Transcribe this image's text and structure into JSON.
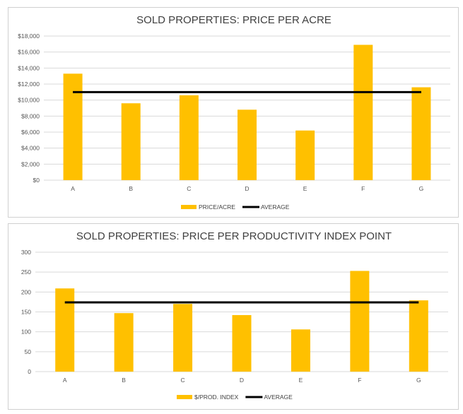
{
  "chart_data": [
    {
      "type": "bar",
      "title": "SOLD PROPERTIES: PRICE PER ACRE",
      "categories": [
        "A",
        "B",
        "C",
        "D",
        "E",
        "F",
        "G"
      ],
      "series": [
        {
          "name": "PRICE/ACRE",
          "type": "bar",
          "color": "#FFC000",
          "values": [
            13300,
            9600,
            10600,
            8800,
            6200,
            16900,
            11600
          ]
        },
        {
          "name": "AVERAGE",
          "type": "line",
          "color": "#000000",
          "values": [
            11000,
            11000,
            11000,
            11000,
            11000,
            11000,
            11000
          ]
        }
      ],
      "ylim": [
        0,
        18000
      ],
      "yticks": [
        0,
        2000,
        4000,
        6000,
        8000,
        10000,
        12000,
        14000,
        16000,
        18000
      ],
      "ytick_labels": [
        "$0",
        "$2,000",
        "$4,000",
        "$6,000",
        "$8,000",
        "$10,000",
        "$12,000",
        "$14,000",
        "$16,000",
        "$18,000"
      ],
      "xlabel": "",
      "ylabel": "",
      "grid": true,
      "legend": "bottom"
    },
    {
      "type": "bar",
      "title": "SOLD PROPERTIES: PRICE PER PRODUCTIVITY INDEX  POINT",
      "categories": [
        "A",
        "B",
        "C",
        "D",
        "E",
        "F",
        "G"
      ],
      "series": [
        {
          "name": "$/PROD. INDEX",
          "type": "bar",
          "color": "#FFC000",
          "values": [
            209,
            147,
            170,
            142,
            106,
            253,
            179
          ]
        },
        {
          "name": "AVERAGE",
          "type": "line",
          "color": "#000000",
          "values": [
            174,
            174,
            174,
            174,
            174,
            174,
            174
          ]
        }
      ],
      "ylim": [
        0,
        300
      ],
      "yticks": [
        0,
        50,
        100,
        150,
        200,
        250,
        300
      ],
      "ytick_labels": [
        "0",
        "50",
        "100",
        "150",
        "200",
        "250",
        "300"
      ],
      "xlabel": "",
      "ylabel": "",
      "grid": true,
      "legend": "bottom"
    }
  ]
}
